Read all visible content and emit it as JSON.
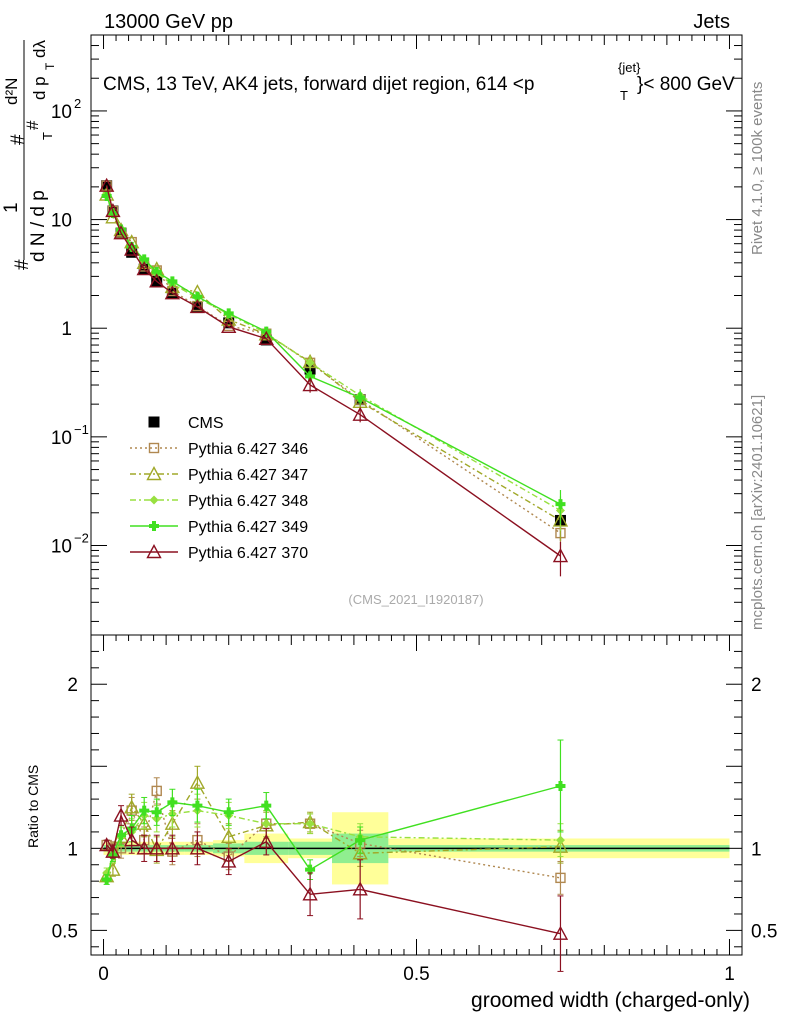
{
  "header": {
    "left": "13000 GeV pp",
    "right": "Jets"
  },
  "plot_title": "CMS, 13 TeV, AK4 jets, forward dijet region, 614 <p",
  "plot_title_sup": "{jet}",
  "plot_title_sub": "T",
  "plot_title_end": "}< 800 GeV",
  "side_label_top": "Rivet 4.1.0, ≥ 100k events",
  "side_label_bottom": "mcplots.cern.ch [arXiv:2401.10621]",
  "watermark": "(CMS_2021_I1920187)",
  "ylabel_main": {
    "numerator_num": "1",
    "denominator_num": "d N / d p",
    "symbol": "#",
    "d2n": "d²N",
    "dp": "d p",
    "dlambda": "dλ",
    "sub_t": "T"
  },
  "ylabel_ratio": "Ratio to CMS",
  "xlabel": "groomed width (charged-only)",
  "colors": {
    "data": "#000000",
    "p346": "#b08850",
    "p347": "#a0a828",
    "p348": "#98e040",
    "p349": "#40e020",
    "p370": "#8b1020",
    "band_outer": "#ffff99",
    "band_inner": "#90ee90"
  },
  "chart_data": [
    {
      "type": "scatter",
      "panel": "main",
      "title": "CMS, 13 TeV, AK4 jets, forward dijet region, 614 <p_T^{jet}< 800 GeV",
      "xlim": [
        -0.02,
        1.02
      ],
      "ylim": [
        0.0015,
        500
      ],
      "yscale": "log",
      "yticks": [
        {
          "value": 0.01,
          "label": "10",
          "exp": "−2"
        },
        {
          "value": 0.1,
          "label": "10",
          "exp": "−1"
        },
        {
          "value": 1,
          "label": "1",
          "exp": ""
        },
        {
          "value": 10,
          "label": "10",
          "exp": ""
        },
        {
          "value": 100,
          "label": "10",
          "exp": "2"
        }
      ],
      "legend": [
        "CMS",
        "Pythia 6.427 346",
        "Pythia 6.427 347",
        "Pythia 6.427 348",
        "Pythia 6.427 349",
        "Pythia 6.427 370"
      ],
      "x": [
        0.005,
        0.015,
        0.028,
        0.045,
        0.065,
        0.085,
        0.11,
        0.15,
        0.2,
        0.26,
        0.33,
        0.41,
        0.73
      ],
      "series": [
        {
          "name": "CMS",
          "key": "data",
          "marker": "square",
          "values": [
            20.5,
            12.0,
            7.5,
            5.0,
            3.5,
            2.7,
            2.1,
            1.55,
            1.12,
            0.78,
            0.42,
            0.22,
            0.017
          ]
        },
        {
          "name": "Pythia 6.427 346",
          "key": "p346",
          "marker": "open-square",
          "dash": "2,3",
          "values": [
            20.5,
            12.0,
            7.6,
            6.2,
            3.7,
            3.4,
            2.2,
            1.6,
            1.05,
            0.89,
            0.48,
            0.22,
            0.013
          ]
        },
        {
          "name": "Pythia 6.427 347",
          "key": "p347",
          "marker": "open-triangle",
          "dash": "6,3,2,3",
          "values": [
            17.0,
            10.5,
            8.0,
            6.2,
            4.0,
            3.5,
            2.4,
            2.15,
            1.2,
            0.88,
            0.49,
            0.21,
            0.017
          ]
        },
        {
          "name": "Pythia 6.427 348",
          "key": "p348",
          "marker": "diamond",
          "dash": "6,3,2,3",
          "values": [
            17.5,
            11.5,
            8.0,
            5.5,
            4.2,
            3.2,
            2.55,
            1.9,
            1.35,
            0.9,
            0.48,
            0.24,
            0.021
          ]
        },
        {
          "name": "Pythia 6.427 349",
          "key": "p349",
          "marker": "cross",
          "dash": "",
          "values": [
            16.5,
            11.5,
            8.1,
            5.6,
            4.3,
            3.3,
            2.7,
            1.95,
            1.37,
            0.93,
            0.36,
            0.23,
            0.024
          ]
        },
        {
          "name": "Pythia 6.427 370",
          "key": "p370",
          "marker": "open-triangle",
          "dash": "",
          "values": [
            20.5,
            12.0,
            7.5,
            5.3,
            3.5,
            2.7,
            2.1,
            1.57,
            1.03,
            0.8,
            0.3,
            0.16,
            0.008
          ]
        }
      ]
    },
    {
      "type": "scatter",
      "panel": "ratio",
      "ylabel": "Ratio to CMS",
      "xlabel": "groomed width (charged-only)",
      "xlim": [
        -0.02,
        1.02
      ],
      "ylim": [
        0.35,
        2.3
      ],
      "yticks": [
        {
          "value": 0.5,
          "label": "0.5"
        },
        {
          "value": 1,
          "label": "1"
        },
        {
          "value": 2,
          "label": "2"
        }
      ],
      "xticks": [
        {
          "value": 0,
          "label": "0"
        },
        {
          "value": 0.5,
          "label": "0.5"
        },
        {
          "value": 1,
          "label": "1"
        }
      ],
      "x": [
        0.005,
        0.015,
        0.028,
        0.045,
        0.065,
        0.085,
        0.11,
        0.15,
        0.2,
        0.26,
        0.33,
        0.41,
        0.73
      ],
      "bands": [
        {
          "x0": 0.0,
          "x1": 0.01,
          "outer": 0.04,
          "inner": 0.02
        },
        {
          "x0": 0.01,
          "x1": 0.02,
          "outer": 0.04,
          "inner": 0.02
        },
        {
          "x0": 0.02,
          "x1": 0.035,
          "outer": 0.04,
          "inner": 0.02
        },
        {
          "x0": 0.035,
          "x1": 0.055,
          "outer": 0.04,
          "inner": 0.02
        },
        {
          "x0": 0.055,
          "x1": 0.075,
          "outer": 0.04,
          "inner": 0.02
        },
        {
          "x0": 0.075,
          "x1": 0.095,
          "outer": 0.04,
          "inner": 0.02
        },
        {
          "x0": 0.095,
          "x1": 0.13,
          "outer": 0.04,
          "inner": 0.02
        },
        {
          "x0": 0.13,
          "x1": 0.175,
          "outer": 0.04,
          "inner": 0.02
        },
        {
          "x0": 0.175,
          "x1": 0.225,
          "outer": 0.05,
          "inner": 0.03
        },
        {
          "x0": 0.225,
          "x1": 0.295,
          "outer": 0.09,
          "inner": 0.04
        },
        {
          "x0": 0.295,
          "x1": 0.365,
          "outer": 0.06,
          "inner": 0.04
        },
        {
          "x0": 0.365,
          "x1": 0.455,
          "outer": 0.22,
          "inner": 0.09
        },
        {
          "x0": 0.455,
          "x1": 1.0,
          "outer": 0.06,
          "inner": 0.02
        }
      ],
      "series": [
        {
          "name": "Pythia 6.427 346",
          "key": "p346",
          "marker": "open-square",
          "dash": "2,3",
          "values": [
            1.02,
            1.0,
            1.0,
            1.23,
            1.05,
            1.35,
            0.98,
            1.05,
            0.95,
            1.15,
            1.15,
            1.03,
            0.82
          ],
          "err": [
            0.03,
            0.04,
            0.06,
            0.08,
            0.08,
            0.08,
            0.08,
            0.1,
            0.08,
            0.08,
            0.06,
            0.08,
            0.1
          ]
        },
        {
          "name": "Pythia 6.427 347",
          "key": "p347",
          "marker": "open-triangle",
          "dash": "6,3,2,3",
          "values": [
            0.83,
            0.87,
            1.07,
            1.25,
            1.15,
            0.99,
            1.15,
            1.4,
            1.07,
            1.14,
            1.16,
            0.97,
            1.01
          ],
          "err": [
            0.03,
            0.04,
            0.06,
            0.08,
            0.08,
            0.08,
            0.08,
            0.1,
            0.08,
            0.08,
            0.06,
            0.08,
            0.1
          ]
        },
        {
          "name": "Pythia 6.427 348",
          "key": "p348",
          "marker": "diamond",
          "dash": "6,3,2,3",
          "values": [
            0.85,
            0.95,
            1.07,
            1.1,
            1.2,
            1.18,
            1.21,
            1.23,
            1.2,
            1.15,
            1.15,
            1.07,
            1.05
          ],
          "err": [
            0.03,
            0.04,
            0.06,
            0.08,
            0.08,
            0.08,
            0.08,
            0.1,
            0.08,
            0.08,
            0.06,
            0.08,
            0.1
          ]
        },
        {
          "name": "Pythia 6.427 349",
          "key": "p349",
          "marker": "cross",
          "dash": "",
          "values": [
            0.81,
            0.96,
            1.08,
            1.12,
            1.23,
            1.22,
            1.28,
            1.26,
            1.22,
            1.26,
            0.87,
            1.05,
            1.38
          ],
          "err": [
            0.03,
            0.04,
            0.06,
            0.08,
            0.08,
            0.08,
            0.08,
            0.1,
            0.08,
            0.08,
            0.06,
            0.08,
            0.28
          ]
        },
        {
          "name": "Pythia 6.427 370",
          "key": "p370",
          "marker": "open-triangle",
          "dash": "",
          "values": [
            1.02,
            0.98,
            1.2,
            1.05,
            1.0,
            1.0,
            1.0,
            1.0,
            0.92,
            1.04,
            0.72,
            0.75,
            0.48
          ],
          "err": [
            0.03,
            0.04,
            0.06,
            0.08,
            0.08,
            0.08,
            0.08,
            0.1,
            0.08,
            0.08,
            0.13,
            0.18,
            0.23
          ]
        }
      ]
    }
  ]
}
